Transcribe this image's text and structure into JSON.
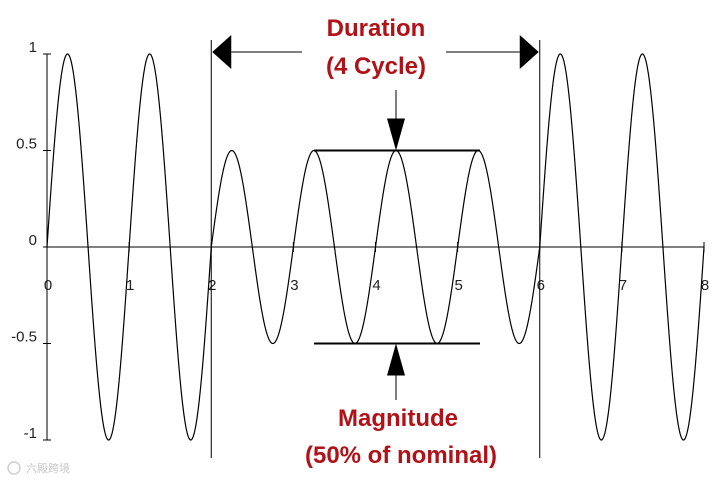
{
  "chart_data": {
    "type": "line",
    "title": "",
    "xlabel": "",
    "ylabel": "",
    "xlim": [
      0,
      8
    ],
    "ylim": [
      -1,
      1
    ],
    "x_ticks": [
      "0",
      "1",
      "2",
      "3",
      "4",
      "5",
      "6",
      "7",
      "8"
    ],
    "y_ticks": [
      "1",
      "0.5",
      "0",
      "-0.5",
      "-1"
    ],
    "grid": false,
    "series": [
      {
        "name": "",
        "function": "sine",
        "cycles_per_unit": 1,
        "segments": [
          {
            "x_start": 0,
            "x_end": 2,
            "amplitude": 1
          },
          {
            "x_start": 2,
            "x_end": 6,
            "amplitude": 0.5
          },
          {
            "x_start": 6,
            "x_end": 8,
            "amplitude": 1
          }
        ]
      }
    ],
    "markers": {
      "event_start_x": 2,
      "event_end_x": 6
    },
    "annotations": {
      "duration": {
        "line1": "Duration",
        "line2": "(4 Cycle)"
      },
      "magnitude": {
        "line1": "Magnitude",
        "line2": "(50% of nominal)"
      }
    }
  },
  "colors": {
    "annotation_text": "#b01218",
    "line": "#000000"
  },
  "watermark_text": "六殿跨境"
}
